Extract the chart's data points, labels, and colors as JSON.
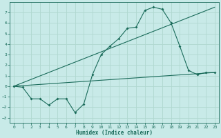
{
  "title": "",
  "xlabel": "Humidex (Indice chaleur)",
  "ylabel": "",
  "background_color": "#c8eae8",
  "grid_color": "#b0d8d0",
  "line_color": "#1a6b5a",
  "xlim": [
    -0.5,
    23.5
  ],
  "ylim": [
    -3.5,
    8.0
  ],
  "xticks": [
    0,
    1,
    2,
    3,
    4,
    5,
    6,
    7,
    8,
    9,
    10,
    11,
    12,
    13,
    14,
    15,
    16,
    17,
    18,
    19,
    20,
    21,
    22,
    23
  ],
  "yticks": [
    -3,
    -2,
    -1,
    0,
    1,
    2,
    3,
    4,
    5,
    6,
    7
  ],
  "line1_x": [
    0,
    1,
    2,
    3,
    4,
    5,
    6,
    7,
    8,
    9,
    10,
    11,
    12,
    13,
    14,
    15,
    16,
    17,
    18,
    19,
    20,
    21,
    22,
    23
  ],
  "line1_y": [
    0.0,
    -0.1,
    -1.2,
    -1.2,
    -1.8,
    -1.2,
    -1.2,
    -2.5,
    -1.7,
    1.1,
    3.0,
    3.8,
    4.5,
    5.5,
    5.6,
    7.2,
    7.5,
    7.3,
    6.0,
    3.8,
    1.5,
    1.1,
    1.3,
    1.3
  ],
  "line2_x": [
    0,
    23
  ],
  "line2_y": [
    0.0,
    1.3
  ],
  "line3_x": [
    0,
    23
  ],
  "line3_y": [
    0.0,
    7.5
  ]
}
